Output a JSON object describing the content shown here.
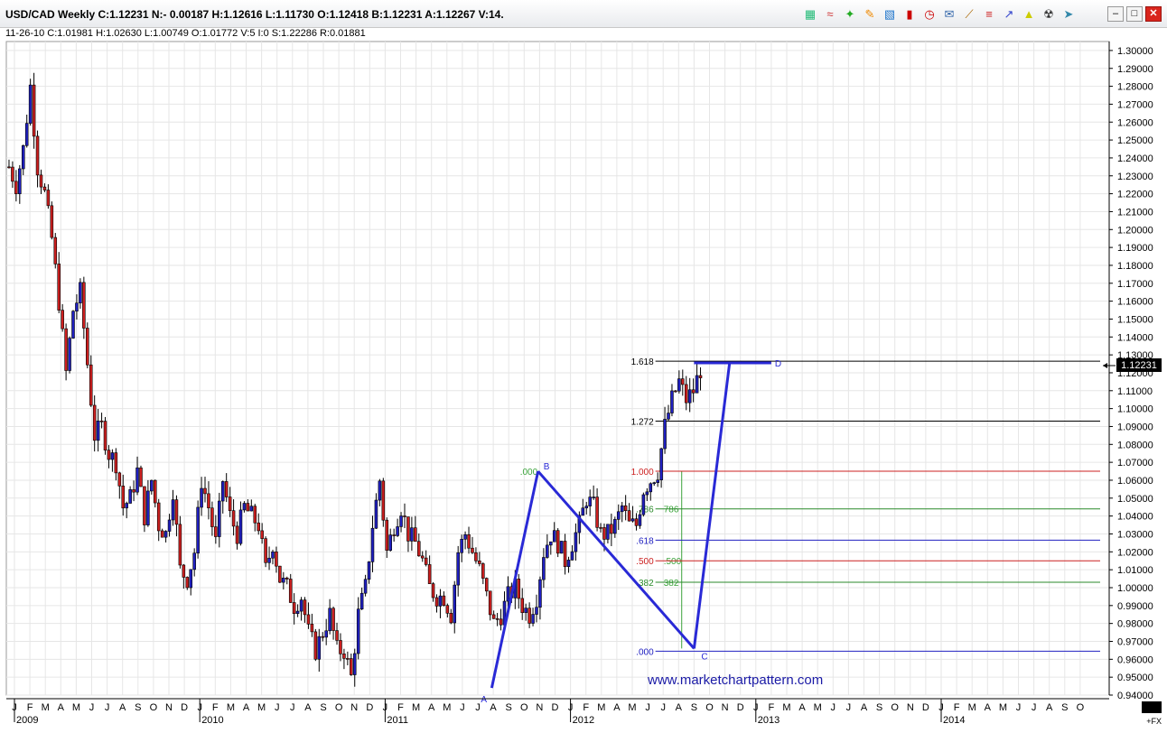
{
  "header": {
    "title": "USD/CAD Weekly  C:1.12231  N:- 0.00187  H:1.12616  L:1.11730  O:1.12418  B:1.12231  A:1.12267  V:14.",
    "subinfo": "11-26-10  C:1.01981  H:1.02630  L:1.00749  O:1.01772  V:5  I:0  S:1.22286  R:0.01881"
  },
  "toolbar": {
    "icons": [
      "layers-icon",
      "waves-icon",
      "tree-icon",
      "pencil-icon",
      "bar-chart-icon",
      "candle-icon",
      "clock-icon",
      "mail-icon",
      "line-draw-icon",
      "fib-icon",
      "trend-icon",
      "triangle-icon",
      "trash-icon",
      "pin-icon"
    ],
    "window_controls": [
      "minimize",
      "restore",
      "close"
    ]
  },
  "colors": {
    "up": "#1f1fbf",
    "down": "#cc1f1f",
    "pattern": "#2929d6",
    "retrace_green": "#3aa33a",
    "grid": "#e4e4e4"
  },
  "watermark": "www.marketchartpattern.com",
  "current_price_label": "1.12231",
  "fx_label": "+FX",
  "chart_data": {
    "type": "candlestick",
    "title": "USD/CAD Weekly",
    "ylim": [
      0.94,
      1.305
    ],
    "y_ticks": [
      "1.30000",
      "1.29000",
      "1.28000",
      "1.27000",
      "1.26000",
      "1.25000",
      "1.24000",
      "1.23000",
      "1.22000",
      "1.21000",
      "1.20000",
      "1.19000",
      "1.18000",
      "1.17000",
      "1.16000",
      "1.15000",
      "1.14000",
      "1.13000",
      "1.12000",
      "1.11000",
      "1.10000",
      "1.09000",
      "1.08000",
      "1.07000",
      "1.06000",
      "1.05000",
      "1.04000",
      "1.03000",
      "1.02000",
      "1.01000",
      "1.00000",
      "0.99000",
      "0.98000",
      "0.97000",
      "0.96000",
      "0.95000",
      "0.94000"
    ],
    "month_labels": [
      "J",
      "F",
      "M",
      "A",
      "M",
      "J",
      "J",
      "A",
      "S",
      "O",
      "N",
      "D",
      "J",
      "F",
      "M",
      "A",
      "M",
      "J",
      "J",
      "A",
      "S",
      "O",
      "N",
      "D",
      "J",
      "F",
      "M",
      "A",
      "M",
      "J",
      "J",
      "A",
      "S",
      "O",
      "N",
      "D",
      "J",
      "F",
      "M",
      "A",
      "M",
      "J",
      "J",
      "A",
      "S",
      "O",
      "N",
      "D",
      "J",
      "F",
      "M",
      "A",
      "M",
      "J",
      "J",
      "A",
      "S",
      "O",
      "N",
      "D",
      "J",
      "F",
      "M",
      "A",
      "M",
      "J",
      "J",
      "A",
      "S",
      "O"
    ],
    "year_labels": [
      {
        "label": "2009",
        "month_index": 0
      },
      {
        "label": "2010",
        "month_index": 12
      },
      {
        "label": "2011",
        "month_index": 24
      },
      {
        "label": "2012",
        "month_index": 36
      },
      {
        "label": "2013",
        "month_index": 48
      },
      {
        "label": "2014",
        "month_index": 60
      }
    ],
    "price_path": [
      [
        0,
        1.235
      ],
      [
        2,
        1.225
      ],
      [
        4,
        1.245
      ],
      [
        6,
        1.28
      ],
      [
        8,
        1.235
      ],
      [
        10,
        1.22
      ],
      [
        12,
        1.195
      ],
      [
        14,
        1.16
      ],
      [
        16,
        1.12
      ],
      [
        18,
        1.155
      ],
      [
        20,
        1.165
      ],
      [
        22,
        1.125
      ],
      [
        24,
        1.085
      ],
      [
        26,
        1.09
      ],
      [
        28,
        1.075
      ],
      [
        30,
        1.07
      ],
      [
        32,
        1.045
      ],
      [
        34,
        1.05
      ],
      [
        36,
        1.065
      ],
      [
        38,
        1.04
      ],
      [
        40,
        1.06
      ],
      [
        42,
        1.035
      ],
      [
        44,
        1.03
      ],
      [
        46,
        1.055
      ],
      [
        48,
        1.01
      ],
      [
        50,
        1.005
      ],
      [
        52,
        1.02
      ],
      [
        54,
        1.06
      ],
      [
        56,
        1.045
      ],
      [
        58,
        1.025
      ],
      [
        60,
        1.06
      ],
      [
        62,
        1.04
      ],
      [
        64,
        1.03
      ],
      [
        66,
        1.045
      ],
      [
        68,
        1.04
      ],
      [
        70,
        1.035
      ],
      [
        72,
        1.01
      ],
      [
        74,
        1.025
      ],
      [
        76,
        1.005
      ],
      [
        78,
        1.0
      ],
      [
        80,
        0.99
      ],
      [
        82,
        0.995
      ],
      [
        84,
        0.975
      ],
      [
        86,
        0.965
      ],
      [
        88,
        0.975
      ],
      [
        90,
        0.985
      ],
      [
        92,
        0.965
      ],
      [
        94,
        0.965
      ],
      [
        96,
        0.95
      ],
      [
        98,
        0.985
      ],
      [
        100,
        1.0
      ],
      [
        102,
        1.035
      ],
      [
        104,
        1.06
      ],
      [
        106,
        1.02
      ],
      [
        108,
        1.035
      ],
      [
        110,
        1.045
      ],
      [
        112,
        1.03
      ],
      [
        114,
        1.025
      ],
      [
        116,
        1.015
      ],
      [
        118,
        1.0
      ],
      [
        120,
        0.995
      ],
      [
        122,
        0.995
      ],
      [
        124,
        0.985
      ],
      [
        126,
        1.02
      ],
      [
        128,
        1.03
      ],
      [
        130,
        1.02
      ],
      [
        132,
        1.01
      ],
      [
        134,
        0.995
      ],
      [
        136,
        0.98
      ],
      [
        138,
        0.985
      ],
      [
        140,
        0.995
      ],
      [
        142,
        1.0
      ],
      [
        144,
        0.99
      ],
      [
        146,
        0.985
      ],
      [
        148,
        0.995
      ],
      [
        150,
        1.02
      ],
      [
        152,
        1.03
      ],
      [
        154,
        1.025
      ],
      [
        156,
        1.015
      ],
      [
        158,
        1.025
      ],
      [
        160,
        1.035
      ],
      [
        162,
        1.05
      ],
      [
        164,
        1.045
      ],
      [
        166,
        1.03
      ],
      [
        168,
        1.03
      ],
      [
        170,
        1.035
      ],
      [
        172,
        1.045
      ],
      [
        174,
        1.035
      ],
      [
        176,
        1.035
      ],
      [
        178,
        1.055
      ],
      [
        180,
        1.06
      ],
      [
        182,
        1.065
      ],
      [
        184,
        1.09
      ],
      [
        186,
        1.105
      ],
      [
        188,
        1.115
      ],
      [
        190,
        1.105
      ],
      [
        192,
        1.11
      ],
      [
        194,
        1.122
      ]
    ],
    "volatility": 0.012,
    "price_gap": {
      "from_month": 57.6,
      "to_month": 58.0
    },
    "abcd_pattern": {
      "points": [
        {
          "label": "A",
          "price": 0.944,
          "month": 30.9
        },
        {
          "label": "B",
          "price": 1.065,
          "month": 33.9
        },
        {
          "label": "C",
          "price": 0.966,
          "month": 44.0
        },
        {
          "label": "D",
          "price": 1.1255,
          "month": 46.3
        }
      ],
      "d_target_bar": {
        "from_month": 44.0,
        "to_month": 49.0
      }
    },
    "green_retrace": {
      "labels": [
        ".000",
        "382",
        ".500",
        "786"
      ],
      "prices": [
        1.065,
        1.003,
        1.015,
        1.044
      ]
    },
    "fib_extension_levels": [
      {
        "label": ".000",
        "price": 0.9645,
        "color": "#2020c0"
      },
      {
        "label": ".382",
        "price": 1.003,
        "color": "#2a8a2a"
      },
      {
        "label": ".500",
        "price": 1.015,
        "color": "#cc2020"
      },
      {
        "label": ".618",
        "price": 1.0265,
        "color": "#2020c0"
      },
      {
        "label": ".786",
        "price": 1.044,
        "color": "#2a8a2a"
      },
      {
        "label": "1.000",
        "price": 1.065,
        "color": "#cc2020"
      },
      {
        "label": "1.272",
        "price": 1.093,
        "color": "#000000"
      },
      {
        "label": "1.618",
        "price": 1.1265,
        "color": "#000000"
      }
    ],
    "fib_extension_start_month": 41.5,
    "last_price": 1.12231
  }
}
